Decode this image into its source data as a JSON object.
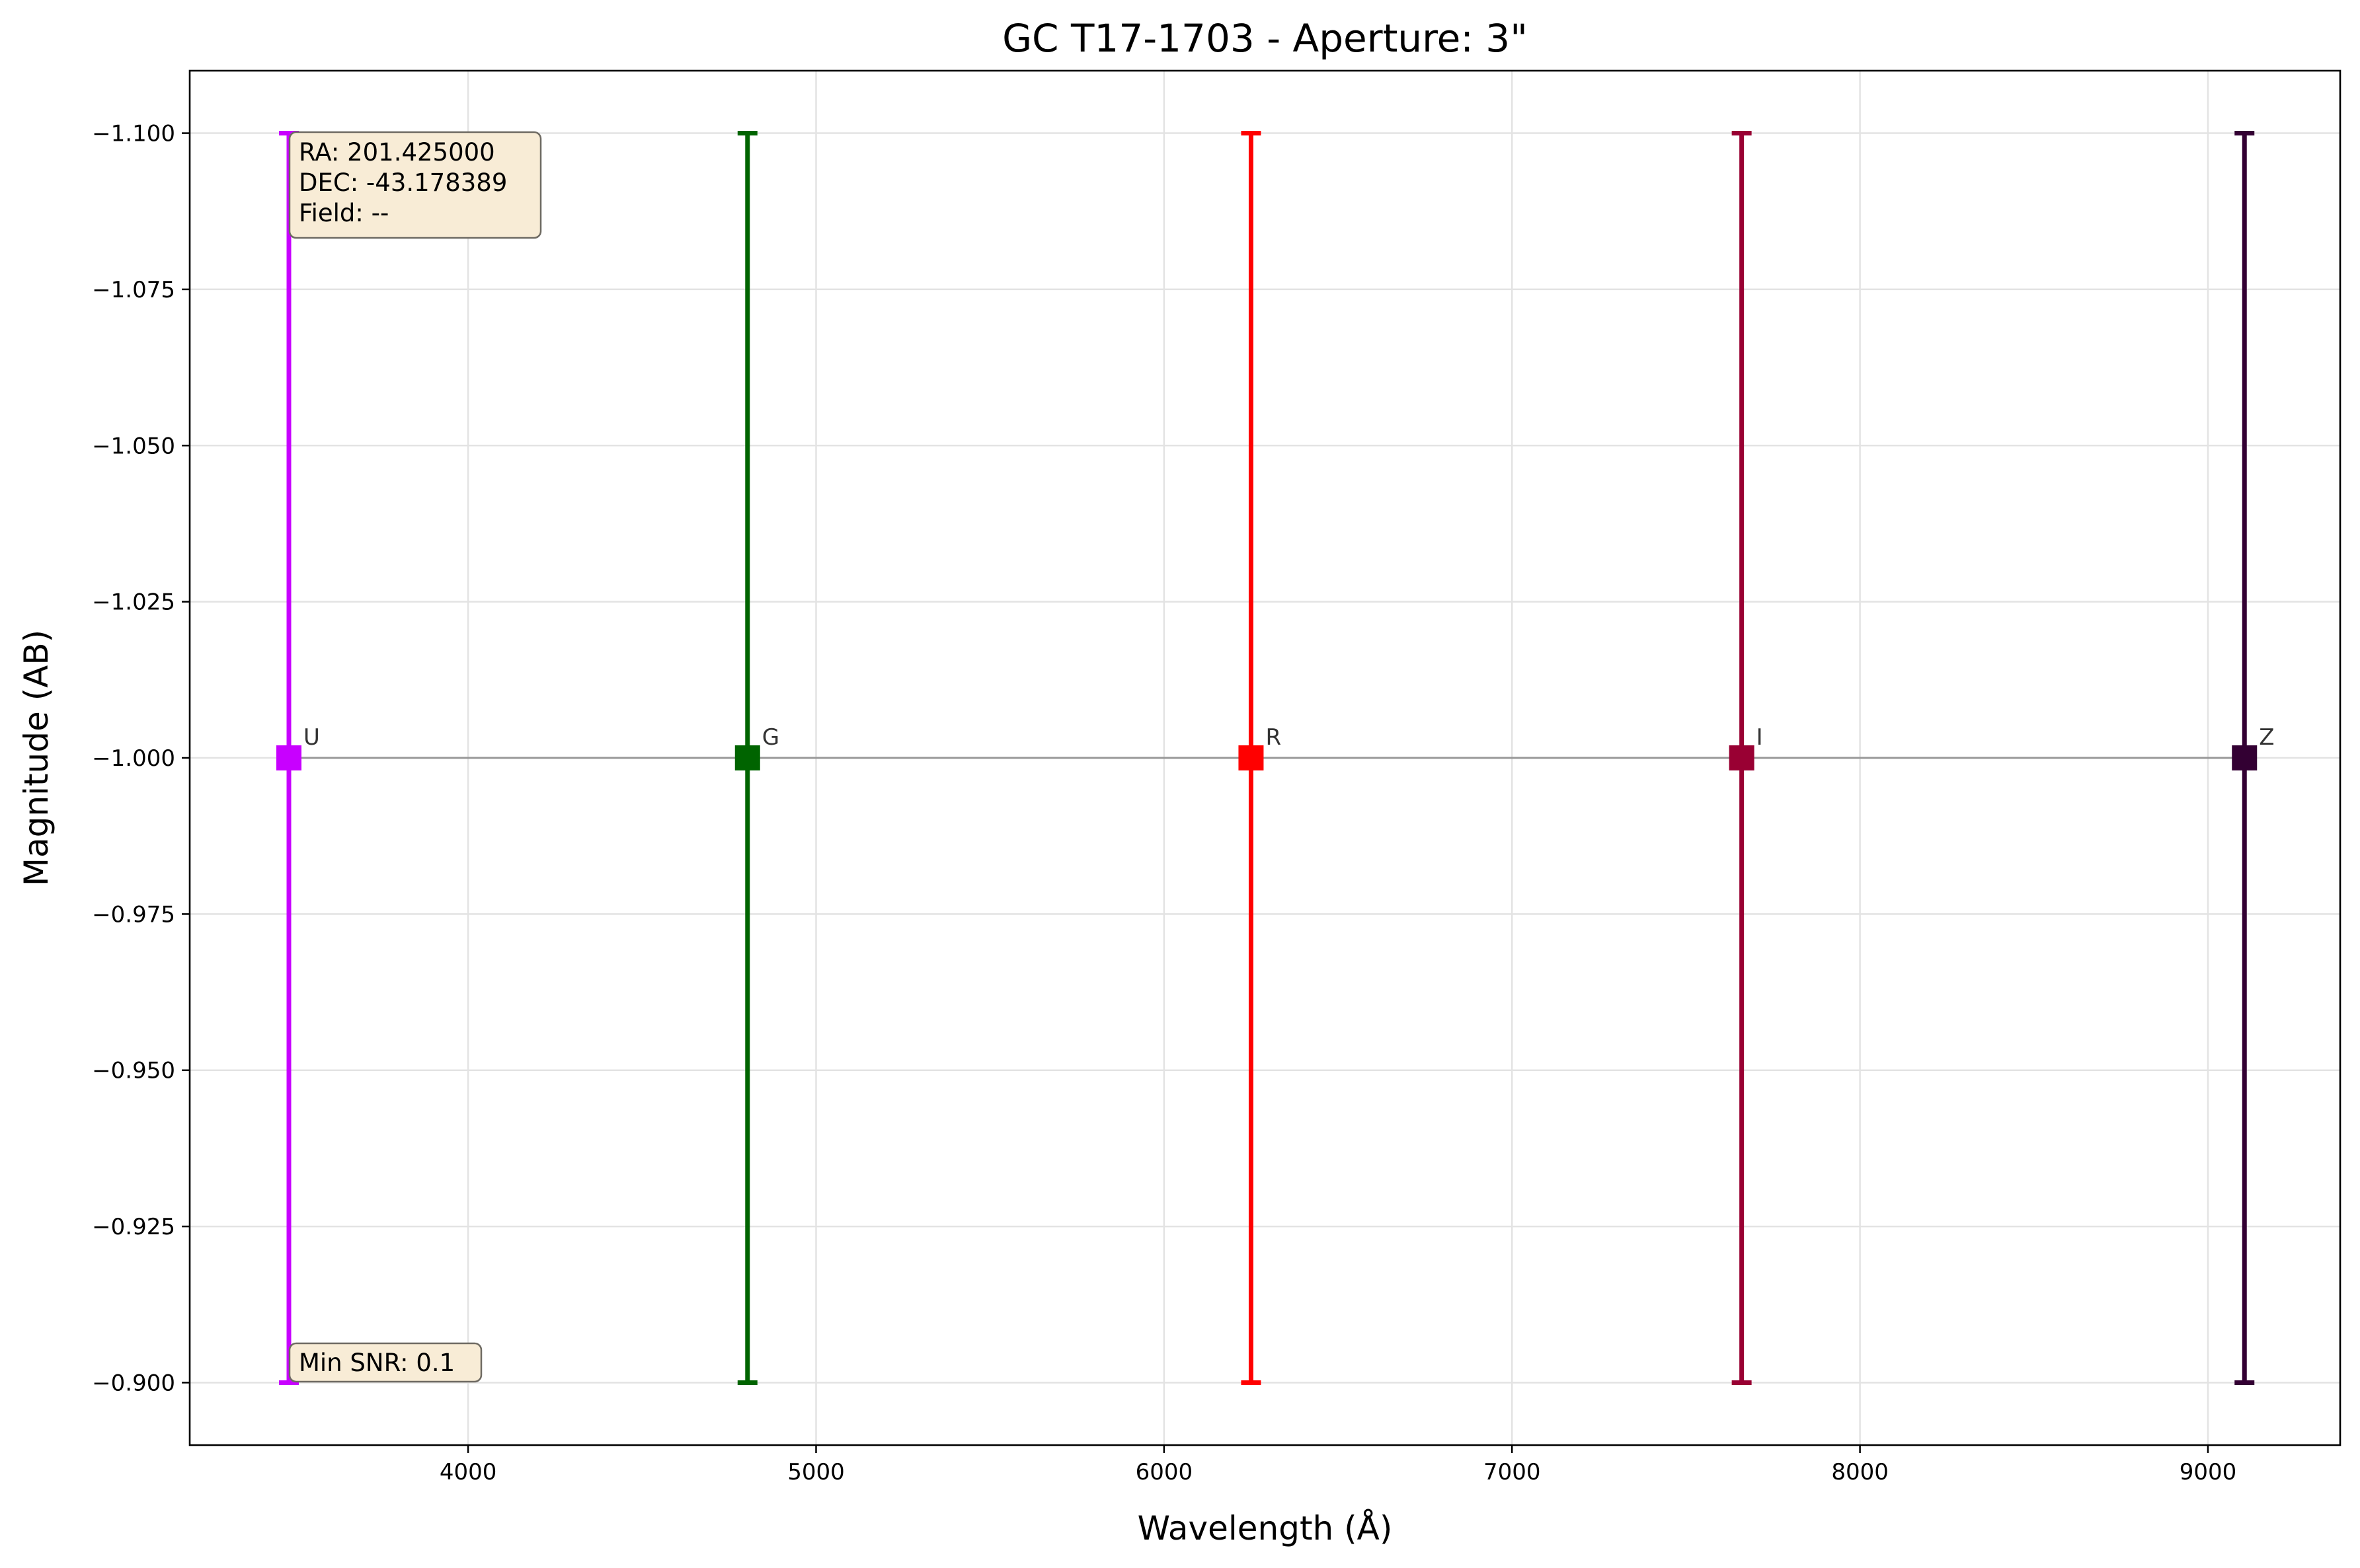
{
  "chart_data": {
    "type": "scatter",
    "title": "GC T17-1703 - Aperture: 3\"",
    "xlabel": "Wavelength (Å)",
    "ylabel": "Magnitude (AB)",
    "xlim": [
      3200,
      9380
    ],
    "ylim": [
      -0.89,
      -1.11
    ],
    "y_inverted": true,
    "grid": true,
    "x_ticks": [
      {
        "value": 4000,
        "label": "4000"
      },
      {
        "value": 5000,
        "label": "5000"
      },
      {
        "value": 6000,
        "label": "6000"
      },
      {
        "value": 7000,
        "label": "7000"
      },
      {
        "value": 8000,
        "label": "8000"
      },
      {
        "value": 9000,
        "label": "9000"
      }
    ],
    "y_ticks": [
      {
        "value": -1.1,
        "label": "−1.100"
      },
      {
        "value": -1.075,
        "label": "−1.075"
      },
      {
        "value": -1.05,
        "label": "−1.050"
      },
      {
        "value": -1.025,
        "label": "−1.025"
      },
      {
        "value": -1.0,
        "label": "−1.000"
      },
      {
        "value": -0.975,
        "label": "−0.975"
      },
      {
        "value": -0.95,
        "label": "−0.950"
      },
      {
        "value": -0.925,
        "label": "−0.925"
      },
      {
        "value": -0.9,
        "label": "−0.900"
      }
    ],
    "connector_color": "#999999",
    "points": [
      {
        "band": "U",
        "x": 3485,
        "y": -1.0,
        "err_low": -1.1,
        "err_high": -0.9,
        "color": "#c800ff"
      },
      {
        "band": "G",
        "x": 4803,
        "y": -1.0,
        "err_low": -1.1,
        "err_high": -0.9,
        "color": "#006400"
      },
      {
        "band": "R",
        "x": 6250,
        "y": -1.0,
        "err_low": -1.1,
        "err_high": -0.9,
        "color": "#ff0000"
      },
      {
        "band": "I",
        "x": 7660,
        "y": -1.0,
        "err_low": -1.1,
        "err_high": -0.9,
        "color": "#990033"
      },
      {
        "band": "Z",
        "x": 9105,
        "y": -1.0,
        "err_low": -1.1,
        "err_high": -0.9,
        "color": "#330033"
      }
    ],
    "annotations": {
      "info_box": [
        "RA: 201.425000",
        "DEC: -43.178389",
        "Field: --"
      ],
      "snr_box": "Min SNR: 0.1"
    }
  }
}
